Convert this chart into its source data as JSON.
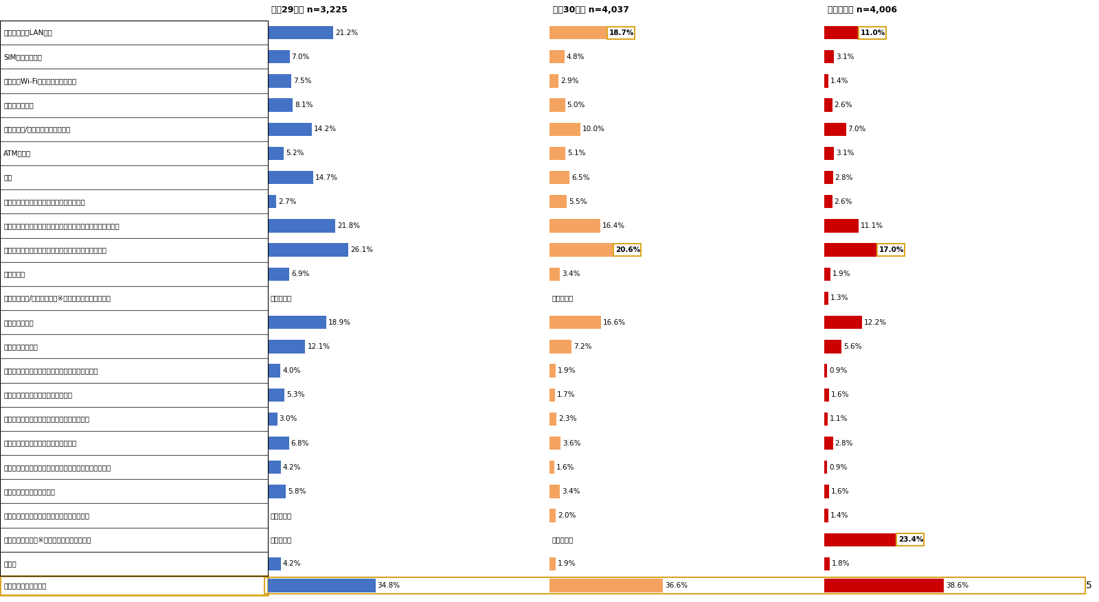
{
  "categories": [
    "無料公衆無線LAN環境",
    "SIMカードの購入",
    "モバイルWi-Fiルーターのレンタル",
    "国際ローミング",
    "クレジット/デビットカードの利用",
    "ATMの利用",
    "両替",
    "その他決済手段（モバイルペイメント等）",
    "多言語表示の少なさ・わかりにくさ（観光案内板・地図等）",
    "施設等のスタッフとのコミュニケーションがとれない",
    "入国手続き",
    "チェックイン/出国手続き　※令和元年度新規追加項目",
    "公共交通の利用",
    "鉄道の割引きっぷ",
    "災害、けが・病気の際の医療機関、海外旅行保険",
    "観光案内所の利用や観光地での案内",
    "宿泊施設や空港などへの荷物の配送サービス",
    "飲食店、宿泊施設の情報の入手・予約",
    "観光地におけるツアー、旅行商品（情報入手、種類等）",
    "トイレの利用・場所・設備",
    "多様な文化宗教への配慮（礼拝室、食事等）",
    "ゴミ箱の少なさ　※令和元年度新規追加項目",
    "その他",
    "困ったことはなかった"
  ],
  "heisei29": [
    21.2,
    7.0,
    7.5,
    8.1,
    14.2,
    5.2,
    14.7,
    2.7,
    21.8,
    26.1,
    6.9,
    null,
    18.9,
    12.1,
    4.0,
    5.3,
    3.0,
    6.8,
    4.2,
    5.8,
    null,
    null,
    4.2,
    34.8
  ],
  "heisei30": [
    18.7,
    4.8,
    2.9,
    5.0,
    10.0,
    5.1,
    6.5,
    5.5,
    16.4,
    20.6,
    3.4,
    null,
    16.6,
    7.2,
    1.9,
    1.7,
    2.3,
    3.6,
    1.6,
    3.4,
    2.0,
    null,
    1.9,
    36.6
  ],
  "reiwa1": [
    11.0,
    3.1,
    1.4,
    2.6,
    7.0,
    3.1,
    2.8,
    2.6,
    11.1,
    17.0,
    1.9,
    1.3,
    12.2,
    5.6,
    0.9,
    1.6,
    1.1,
    2.8,
    0.9,
    1.6,
    1.4,
    23.4,
    1.8,
    38.6
  ],
  "highlighted_heisei30": [
    true,
    false,
    false,
    false,
    false,
    false,
    false,
    false,
    false,
    true,
    false,
    false,
    false,
    false,
    false,
    false,
    false,
    false,
    false,
    false,
    false,
    false,
    false,
    false
  ],
  "highlighted_reiwa1": [
    true,
    false,
    false,
    false,
    false,
    false,
    false,
    false,
    false,
    true,
    false,
    false,
    false,
    false,
    false,
    false,
    false,
    false,
    false,
    false,
    false,
    true,
    false,
    false
  ],
  "color_heisei29": "#4472C4",
  "color_heisei30": "#F4A460",
  "color_reiwa1": "#CC0000",
  "color_last_row_heisei29": "#4472C4",
  "color_last_row_heisei30": "#F4A460",
  "color_last_row_reiwa1": "#CC0000",
  "highlight_box_color": "#FFD700",
  "header_heisei29": "平成29年度 n=3,225",
  "header_heisei30": "平成30年度 n=4,037",
  "header_reiwa1": "令和元年度 n=4,006",
  "note_number": "5"
}
